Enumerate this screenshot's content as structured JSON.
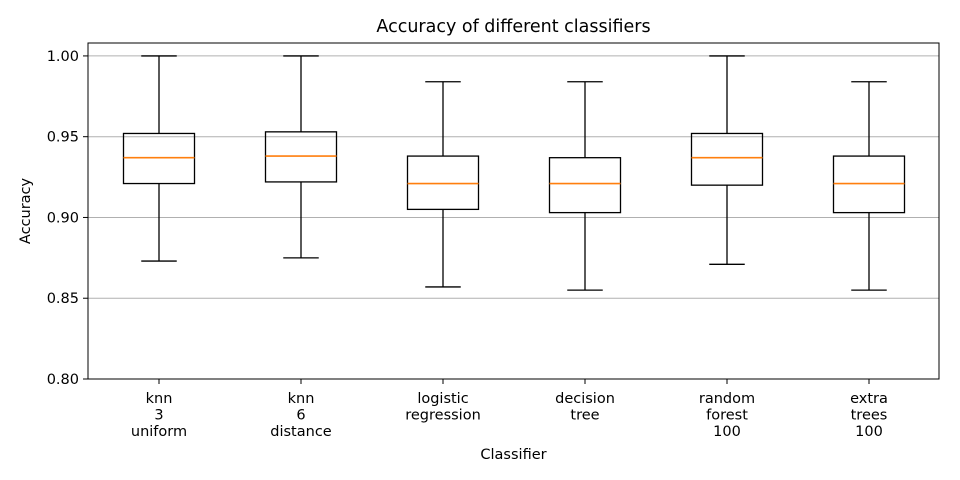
{
  "chart_data": {
    "type": "box",
    "title": "Accuracy of different classifiers",
    "xlabel": "Classifier",
    "ylabel": "Accuracy",
    "ylim": [
      0.8,
      1.008
    ],
    "yticks": [
      "0.80",
      "0.85",
      "0.90",
      "0.95",
      "1.00"
    ],
    "ytick_values": [
      0.8,
      0.85,
      0.9,
      0.95,
      1.0
    ],
    "grid": "horizontal",
    "colors": {
      "box": "#000000",
      "median": "#ff7f0e",
      "grid": "#b0b0b0"
    },
    "categories": [
      {
        "lines": [
          "knn",
          "3",
          "uniform"
        ],
        "whisker_low": 0.873,
        "q1": 0.921,
        "median": 0.937,
        "q3": 0.952,
        "whisker_high": 1.0
      },
      {
        "lines": [
          "knn",
          "6",
          "distance"
        ],
        "whisker_low": 0.875,
        "q1": 0.922,
        "median": 0.938,
        "q3": 0.953,
        "whisker_high": 1.0
      },
      {
        "lines": [
          "logistic",
          "regression"
        ],
        "whisker_low": 0.857,
        "q1": 0.905,
        "median": 0.921,
        "q3": 0.938,
        "whisker_high": 0.984
      },
      {
        "lines": [
          "decision",
          "tree"
        ],
        "whisker_low": 0.855,
        "q1": 0.903,
        "median": 0.921,
        "q3": 0.937,
        "whisker_high": 0.984
      },
      {
        "lines": [
          "random",
          "forest",
          "100"
        ],
        "whisker_low": 0.871,
        "q1": 0.92,
        "median": 0.937,
        "q3": 0.952,
        "whisker_high": 1.0
      },
      {
        "lines": [
          "extra",
          "trees",
          "100"
        ],
        "whisker_low": 0.855,
        "q1": 0.903,
        "median": 0.921,
        "q3": 0.938,
        "whisker_high": 0.984
      }
    ]
  }
}
